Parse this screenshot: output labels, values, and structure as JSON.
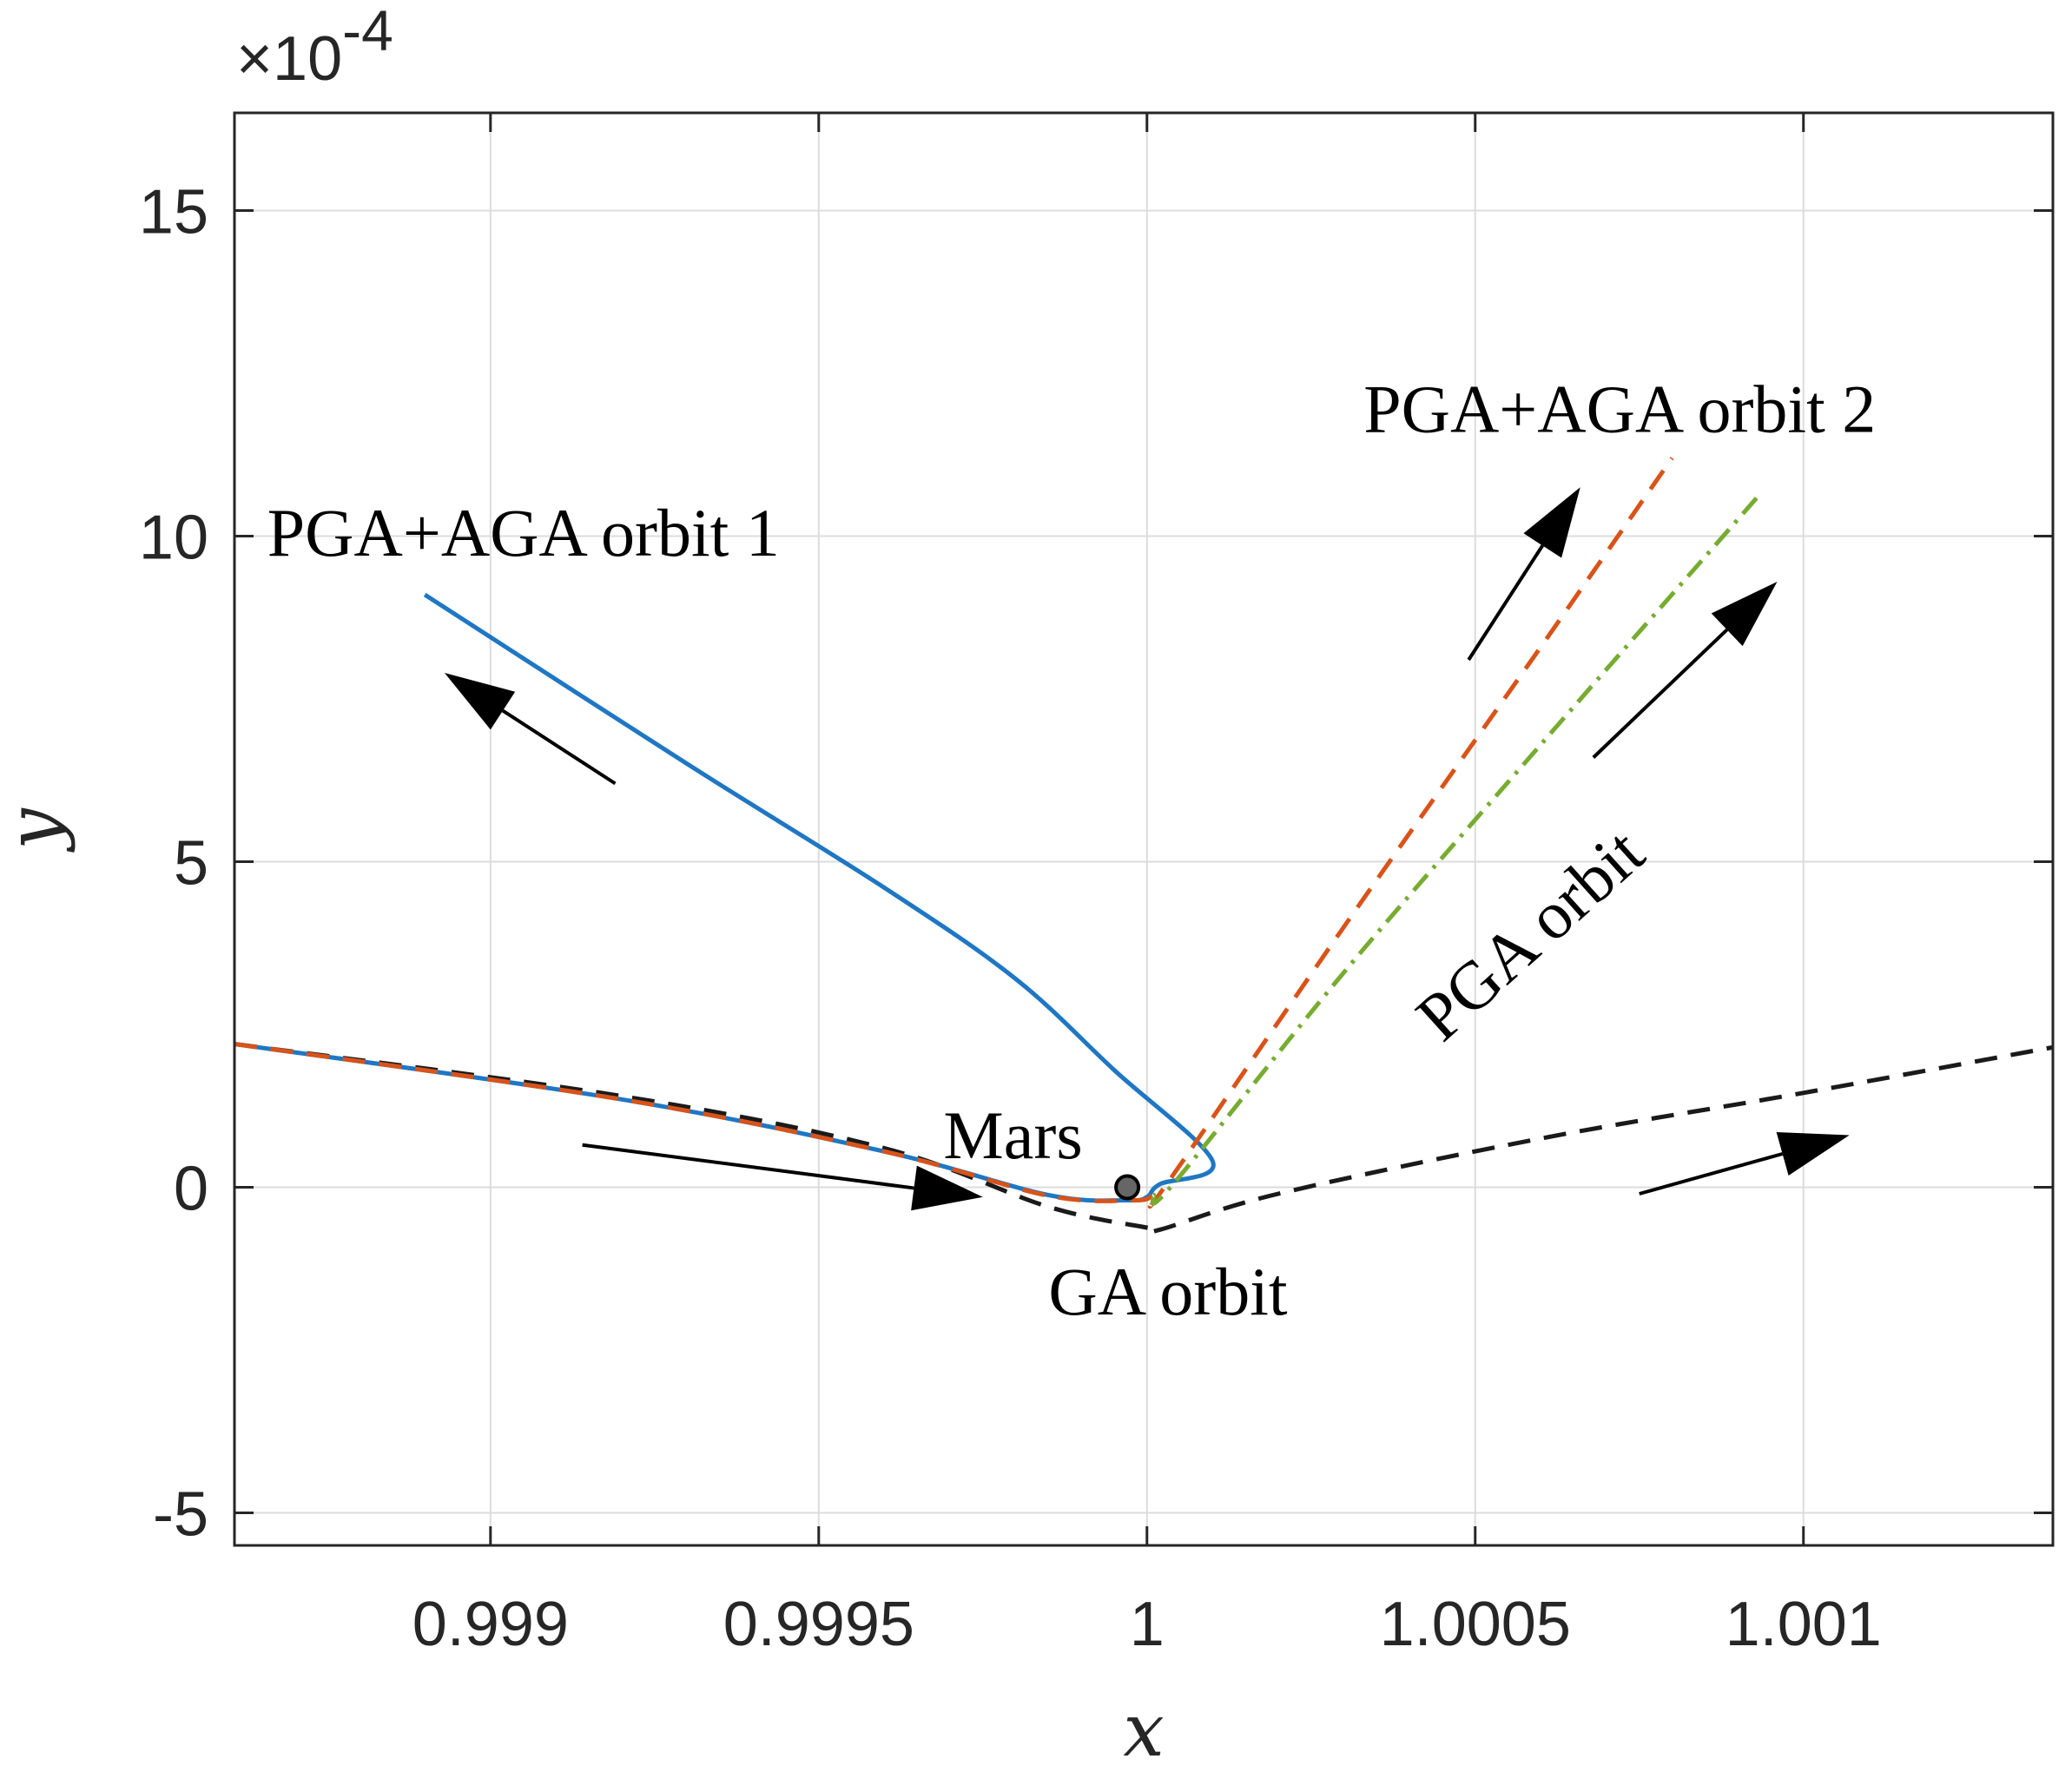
{
  "chart_data": {
    "type": "line",
    "title": "",
    "xlabel": "x",
    "ylabel": "y",
    "xlim": [
      0.99861,
      1.00138
    ],
    "ylim": [
      -5.5,
      16.5
    ],
    "y_scale_factor_label": "×10",
    "y_scale_exponent": "-4",
    "grid": true,
    "xticks": [
      0.999,
      0.9995,
      1,
      1.0005,
      1.001
    ],
    "xtick_labels": [
      "0.999",
      "0.9995",
      "1",
      "1.0005",
      "1.001"
    ],
    "yticks": [
      -5,
      0,
      5,
      10,
      15
    ],
    "ytick_labels": [
      "-5",
      "0",
      "5",
      "10",
      "15"
    ],
    "series": [
      {
        "name": "GA orbit",
        "color": "#1a1a1a",
        "style": "dashed",
        "x": [
          0.99861,
          0.9992,
          0.9996,
          0.99985,
          1.0,
          1.00002,
          1.0002,
          1.0006,
          1.001,
          1.00138
        ],
        "y": [
          2.2,
          1.4,
          0.6,
          -0.3,
          -0.62,
          -0.65,
          -0.1,
          0.75,
          1.45,
          2.15
        ]
      },
      {
        "name": "PGA+AGA orbit 1",
        "color": "#1f77c4",
        "style": "solid",
        "x": [
          0.99861,
          0.9992,
          0.9996,
          0.99985,
          0.99997,
          1.0,
          1.00002,
          1.0001,
          0.99995,
          0.9998,
          0.9996,
          0.9993,
          0.9989
        ],
        "y": [
          2.2,
          1.35,
          0.55,
          -0.12,
          -0.2,
          -0.15,
          0.05,
          0.4,
          1.8,
          3.2,
          4.6,
          6.5,
          9.1
        ]
      },
      {
        "name": "PGA+AGA orbit 2",
        "color": "#d95319",
        "style": "dashed",
        "x": [
          0.99861,
          0.9992,
          0.9996,
          0.99985,
          0.99998,
          1.00001,
          1.00003,
          1.0003,
          1.0006,
          1.0008
        ],
        "y": [
          2.2,
          1.35,
          0.55,
          -0.13,
          -0.2,
          -0.12,
          0.05,
          4.0,
          8.3,
          11.2
        ]
      },
      {
        "name": "PGA orbit",
        "color": "#77ac30",
        "style": "dashdot",
        "x": [
          1.00001,
          1.00004,
          1.0003,
          1.0006,
          1.00093
        ],
        "y": [
          -0.12,
          0.05,
          3.3,
          6.8,
          10.6
        ]
      }
    ],
    "marker": {
      "name": "Mars",
      "x": 0.99997,
      "y": 0.0,
      "color": "#666666"
    },
    "annotations": [
      {
        "id": "pga-aga-1",
        "text": "PGA+AGA orbit 1",
        "x": 0.99866,
        "y": 9.7,
        "rotate": 0
      },
      {
        "id": "pga-aga-2",
        "text": "PGA+AGA orbit 2",
        "x": 1.00033,
        "y": 11.6,
        "rotate": 0
      },
      {
        "id": "pga",
        "text": "PGA orbit",
        "x": 1.00045,
        "y": 2.2,
        "rotate": -42
      },
      {
        "id": "ga",
        "text": "GA orbit",
        "x": 0.99985,
        "y": -1.95,
        "rotate": 0
      },
      {
        "id": "mars",
        "text": "Mars",
        "x": 0.99969,
        "y": 0.45,
        "rotate": 0
      }
    ],
    "arrows": [
      {
        "from": [
          0.99919,
          6.2
        ],
        "to": [
          0.99893,
          7.9
        ]
      },
      {
        "from": [
          0.99914,
          0.65
        ],
        "to": [
          0.99975,
          -0.15
        ]
      },
      {
        "from": [
          1.00049,
          8.1
        ],
        "to": [
          1.00066,
          10.75
        ]
      },
      {
        "from": [
          1.00068,
          6.6
        ],
        "to": [
          1.00096,
          9.3
        ]
      },
      {
        "from": [
          1.00075,
          -0.1
        ],
        "to": [
          1.00107,
          0.8
        ]
      }
    ]
  }
}
